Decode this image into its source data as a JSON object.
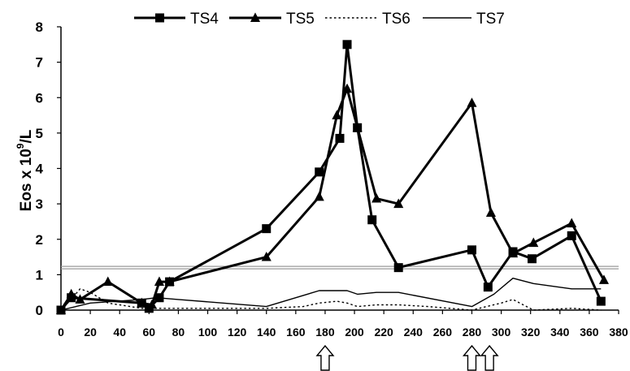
{
  "chart_data": {
    "type": "line",
    "ylabel": "Eos x 10",
    "ylabel_sup": "9",
    "ylabel_unit": "/L",
    "xlim": [
      0,
      380
    ],
    "ylim": [
      0,
      8
    ],
    "x_ticks": [
      0,
      20,
      40,
      60,
      80,
      100,
      120,
      140,
      160,
      180,
      200,
      220,
      240,
      260,
      280,
      300,
      320,
      340,
      360,
      380
    ],
    "y_ticks": [
      0,
      1,
      2,
      3,
      4,
      5,
      6,
      7,
      8
    ],
    "grid": false,
    "legend_position": "top",
    "reference_line": {
      "y": 1.2,
      "color": "#999999"
    },
    "arrows_at_x": [
      180,
      280,
      292
    ],
    "series": [
      {
        "name": "TS4",
        "style": "solid-bold",
        "marker": "square",
        "x": [
          0,
          7,
          55,
          60,
          67,
          74,
          140,
          176,
          190,
          195,
          202,
          212,
          230,
          280,
          291,
          308,
          321,
          348,
          368
        ],
        "y": [
          0,
          0.35,
          0.2,
          0.05,
          0.35,
          0.8,
          2.3,
          3.9,
          4.85,
          7.5,
          5.15,
          2.55,
          1.2,
          1.7,
          0.65,
          1.65,
          1.45,
          2.1,
          0.25
        ]
      },
      {
        "name": "TS5",
        "style": "solid-bold",
        "marker": "triangle",
        "x": [
          0,
          7,
          13,
          32,
          55,
          62,
          67,
          74,
          140,
          176,
          188,
          195,
          202,
          215,
          230,
          280,
          293,
          308,
          322,
          348,
          370
        ],
        "y": [
          0,
          0.45,
          0.3,
          0.8,
          0.2,
          0.15,
          0.8,
          0.8,
          1.5,
          3.2,
          5.5,
          6.25,
          5.15,
          3.15,
          3.0,
          5.85,
          2.75,
          1.6,
          1.9,
          2.45,
          0.85
        ]
      },
      {
        "name": "TS6",
        "style": "dotted",
        "marker": "none",
        "x": [
          0,
          7,
          13,
          20,
          32,
          55,
          62,
          80,
          140,
          165,
          176,
          188,
          195,
          202,
          215,
          230,
          250,
          280,
          290,
          300,
          308,
          322,
          348,
          368
        ],
        "y": [
          0,
          0.3,
          0.6,
          0.5,
          0.2,
          0.05,
          0.05,
          0.05,
          0.05,
          0.1,
          0.2,
          0.25,
          0.2,
          0.1,
          0.15,
          0.15,
          0.1,
          0.0,
          0.1,
          0.2,
          0.3,
          0.0,
          0.05,
          0.0
        ]
      },
      {
        "name": "TS7",
        "style": "thin-solid",
        "marker": "none",
        "x": [
          0,
          20,
          55,
          65,
          80,
          140,
          176,
          195,
          202,
          215,
          230,
          280,
          295,
          308,
          322,
          348,
          368
        ],
        "y": [
          0,
          0.2,
          0.3,
          0.35,
          0.3,
          0.1,
          0.55,
          0.55,
          0.45,
          0.5,
          0.5,
          0.1,
          0.45,
          0.9,
          0.75,
          0.6,
          0.6
        ]
      }
    ]
  }
}
